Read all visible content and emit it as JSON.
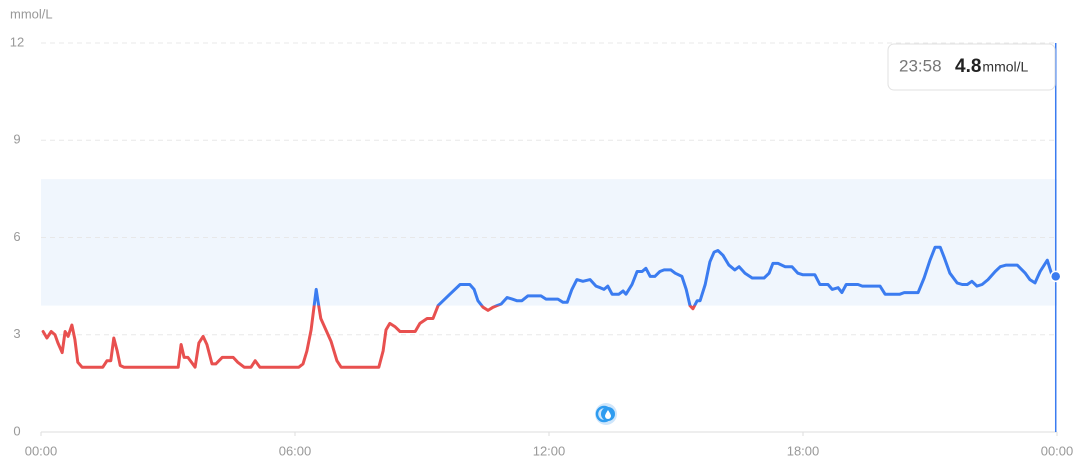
{
  "chart_data": {
    "type": "line",
    "y_label": "mmol/L",
    "x": [
      0.05,
      0.14,
      0.24,
      0.33,
      0.4,
      0.5,
      0.57,
      0.64,
      0.73,
      0.8,
      0.87,
      0.97,
      1.46,
      1.56,
      1.65,
      1.72,
      1.8,
      1.87,
      1.96,
      3.24,
      3.31,
      3.38,
      3.47,
      3.64,
      3.73,
      3.83,
      3.92,
      4.04,
      4.13,
      4.28,
      4.54,
      4.65,
      4.8,
      4.96,
      5.06,
      5.17,
      6.09,
      6.19,
      6.28,
      6.38,
      6.5,
      6.54,
      6.61,
      6.73,
      6.85,
      6.99,
      7.09,
      7.98,
      8.08,
      8.15,
      8.24,
      8.36,
      8.48,
      8.84,
      8.95,
      9.12,
      9.26,
      9.38,
      9.66,
      9.9,
      10.13,
      10.23,
      10.32,
      10.44,
      10.56,
      10.68,
      10.77,
      10.87,
      11.01,
      11.13,
      11.24,
      11.36,
      11.5,
      11.81,
      11.93,
      12.21,
      12.33,
      12.43,
      12.54,
      12.66,
      12.8,
      12.97,
      13.11,
      13.21,
      13.3,
      13.39,
      13.49,
      13.65,
      13.75,
      13.82,
      13.96,
      14.08,
      14.2,
      14.29,
      14.39,
      14.5,
      14.62,
      14.72,
      14.88,
      14.98,
      15.14,
      15.24,
      15.33,
      15.4,
      15.5,
      15.57,
      15.69,
      15.8,
      15.9,
      15.99,
      16.11,
      16.25,
      16.39,
      16.49,
      16.63,
      16.8,
      17.08,
      17.2,
      17.29,
      17.41,
      17.58,
      17.74,
      17.88,
      18.0,
      18.28,
      18.4,
      18.59,
      18.69,
      18.83,
      18.92,
      19.02,
      19.3,
      19.4,
      19.82,
      19.94,
      20.29,
      20.39,
      20.72,
      20.86,
      21.0,
      21.12,
      21.24,
      21.33,
      21.47,
      21.64,
      21.76,
      21.88,
      21.99,
      22.11,
      22.23,
      22.37,
      22.54,
      22.66,
      22.8,
      23.06,
      23.25,
      23.36,
      23.48,
      23.6,
      23.77,
      23.88,
      23.97
    ],
    "values": [
      3.1,
      2.9,
      3.1,
      3.0,
      2.75,
      2.45,
      3.1,
      2.95,
      3.3,
      2.85,
      2.15,
      2.0,
      2.0,
      2.2,
      2.2,
      2.9,
      2.5,
      2.05,
      2.0,
      2.0,
      2.7,
      2.3,
      2.3,
      2.0,
      2.75,
      2.95,
      2.7,
      2.1,
      2.1,
      2.3,
      2.3,
      2.15,
      2.0,
      2.0,
      2.2,
      2.0,
      2.0,
      2.1,
      2.5,
      3.15,
      4.4,
      4.05,
      3.5,
      3.15,
      2.8,
      2.2,
      2.0,
      2.0,
      2.5,
      3.15,
      3.35,
      3.25,
      3.1,
      3.1,
      3.35,
      3.5,
      3.5,
      3.9,
      4.25,
      4.55,
      4.55,
      4.4,
      4.05,
      3.85,
      3.75,
      3.85,
      3.9,
      3.95,
      4.15,
      4.1,
      4.05,
      4.05,
      4.2,
      4.2,
      4.1,
      4.1,
      4.0,
      4.0,
      4.4,
      4.7,
      4.65,
      4.7,
      4.5,
      4.45,
      4.4,
      4.5,
      4.25,
      4.25,
      4.35,
      4.25,
      4.55,
      4.95,
      4.95,
      5.05,
      4.8,
      4.8,
      4.95,
      5.0,
      5.0,
      4.9,
      4.8,
      4.4,
      3.9,
      3.8,
      4.05,
      4.05,
      4.55,
      5.25,
      5.55,
      5.6,
      5.45,
      5.15,
      5.0,
      5.1,
      4.9,
      4.75,
      4.75,
      4.9,
      5.2,
      5.2,
      5.1,
      5.1,
      4.9,
      4.85,
      4.85,
      4.55,
      4.55,
      4.4,
      4.45,
      4.3,
      4.55,
      4.55,
      4.5,
      4.5,
      4.25,
      4.25,
      4.3,
      4.3,
      4.75,
      5.3,
      5.7,
      5.7,
      5.4,
      4.9,
      4.6,
      4.55,
      4.55,
      4.65,
      4.5,
      4.55,
      4.7,
      4.95,
      5.1,
      5.15,
      5.15,
      4.9,
      4.7,
      4.6,
      4.95,
      5.3,
      4.85,
      4.8
    ],
    "color": "#3b7cf0",
    "low_color": "#e8504f",
    "range_color": "#f0f6fd",
    "target_range": [
      3.9,
      7.8
    ],
    "xlim": [
      0,
      24
    ],
    "ylim": [
      0,
      12
    ],
    "yticks": [
      0,
      3,
      6,
      9,
      12
    ],
    "xticks": [
      {
        "value": 0,
        "label": "00:00"
      },
      {
        "value": 6,
        "label": "06:00"
      },
      {
        "value": 12,
        "label": "12:00"
      },
      {
        "value": 18,
        "label": "18:00"
      },
      {
        "value": 24,
        "label": "00:00"
      }
    ],
    "grid": true,
    "tooltip": {
      "time": "23:58",
      "value": 4.8
    }
  }
}
